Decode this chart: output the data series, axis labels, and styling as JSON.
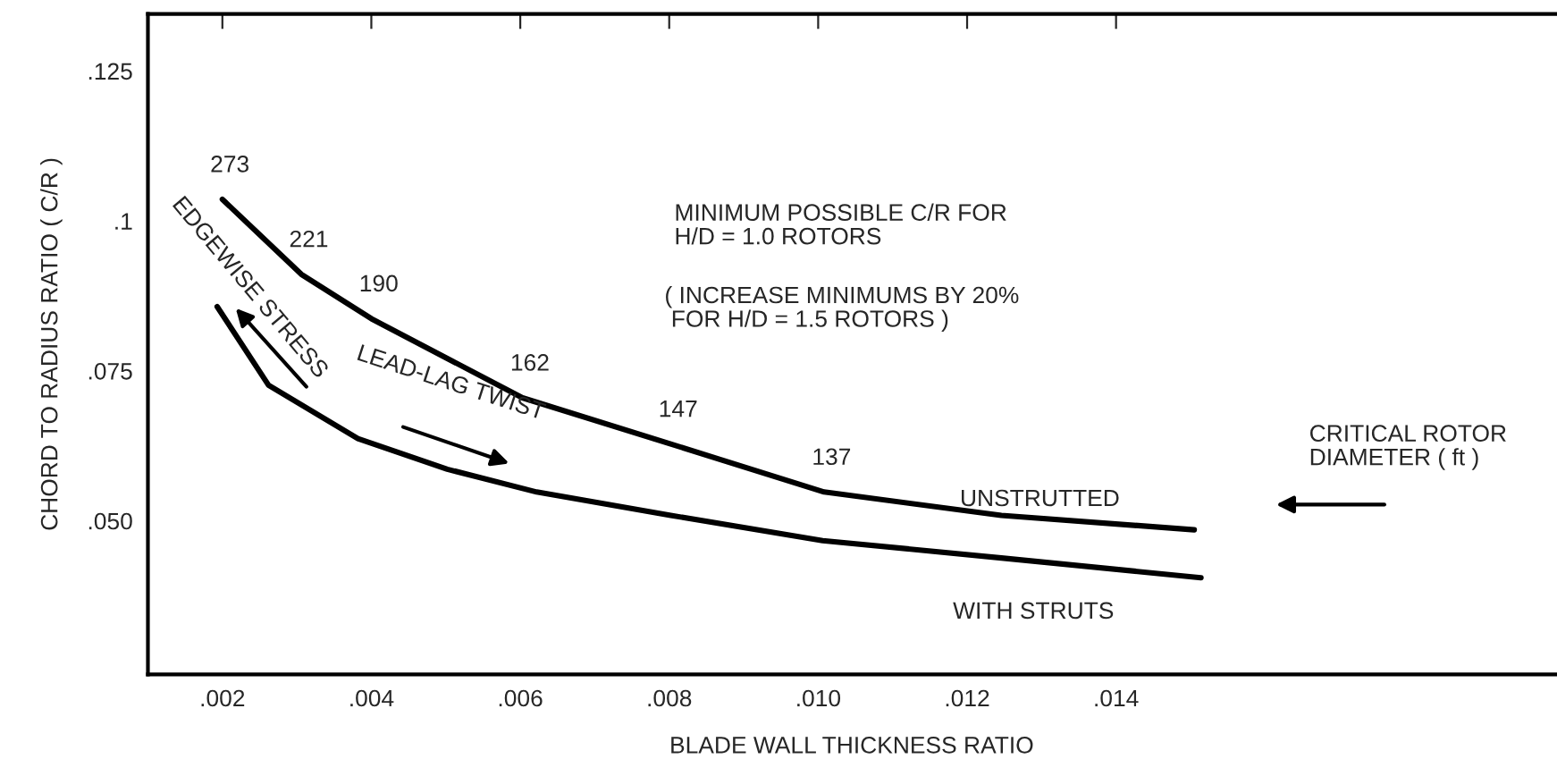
{
  "chart_data": {
    "type": "line",
    "xlabel": "BLADE WALL THICKNESS RATIO",
    "ylabel": "CHORD TO RADIUS RATIO ( C/R )",
    "xlim": [
      0.001,
      0.0199
    ],
    "ylim": [
      0.0244,
      0.1345
    ],
    "xticks": [
      {
        "value": 0.002,
        "label": ".002"
      },
      {
        "value": 0.004,
        "label": ".004"
      },
      {
        "value": 0.006,
        "label": ".006"
      },
      {
        "value": 0.008,
        "label": ".008"
      },
      {
        "value": 0.01,
        "label": ".010"
      },
      {
        "value": 0.012,
        "label": ".012"
      },
      {
        "value": 0.014,
        "label": ".014"
      }
    ],
    "yticks": [
      {
        "value": 0.05,
        "label": ".050"
      },
      {
        "value": 0.075,
        "label": ".075"
      },
      {
        "value": 0.1,
        "label": ".1"
      },
      {
        "value": 0.125,
        "label": ".125"
      }
    ],
    "grid": false,
    "legend": false,
    "marker": "none",
    "line_style": "solid",
    "series": [
      {
        "name": "UNSTRUTTED",
        "color": "#000000",
        "x": [
          0.002,
          0.00306,
          0.004,
          0.00603,
          0.00802,
          0.01008,
          0.01246,
          0.01505
        ],
        "values": [
          0.1036,
          0.0911,
          0.0837,
          0.0705,
          0.0628,
          0.0548,
          0.0509,
          0.0485
        ]
      },
      {
        "name": "WITH STRUTS",
        "color": "#000000",
        "x": [
          0.00193,
          0.00262,
          0.00382,
          0.00502,
          0.00622,
          0.00802,
          0.01006,
          0.01246,
          0.01514
        ],
        "values": [
          0.0857,
          0.0726,
          0.0637,
          0.0586,
          0.0548,
          0.0509,
          0.0467,
          0.0438,
          0.0405
        ]
      }
    ],
    "annotations": [
      {
        "text": "273",
        "x": 0.002,
        "y": 0.1036
      },
      {
        "text": "221",
        "x": 0.00306,
        "y": 0.0911
      },
      {
        "text": "190",
        "x": 0.004,
        "y": 0.0837
      },
      {
        "text": "162",
        "x": 0.00603,
        "y": 0.0705
      },
      {
        "text": "147",
        "x": 0.00802,
        "y": 0.0628
      },
      {
        "text": "137",
        "x": 0.01008,
        "y": 0.0548
      },
      "MINIMUM POSSIBLE C/R FOR\nH/D = 1.0 ROTORS",
      "( INCREASE MINIMUMS BY 20%\n FOR H/D = 1.5 ROTORS )",
      "EDGEWISE STRESS",
      "LEAD-LAG TWIST",
      "CRITICAL ROTOR\nDIAMETER ( ft )"
    ]
  }
}
